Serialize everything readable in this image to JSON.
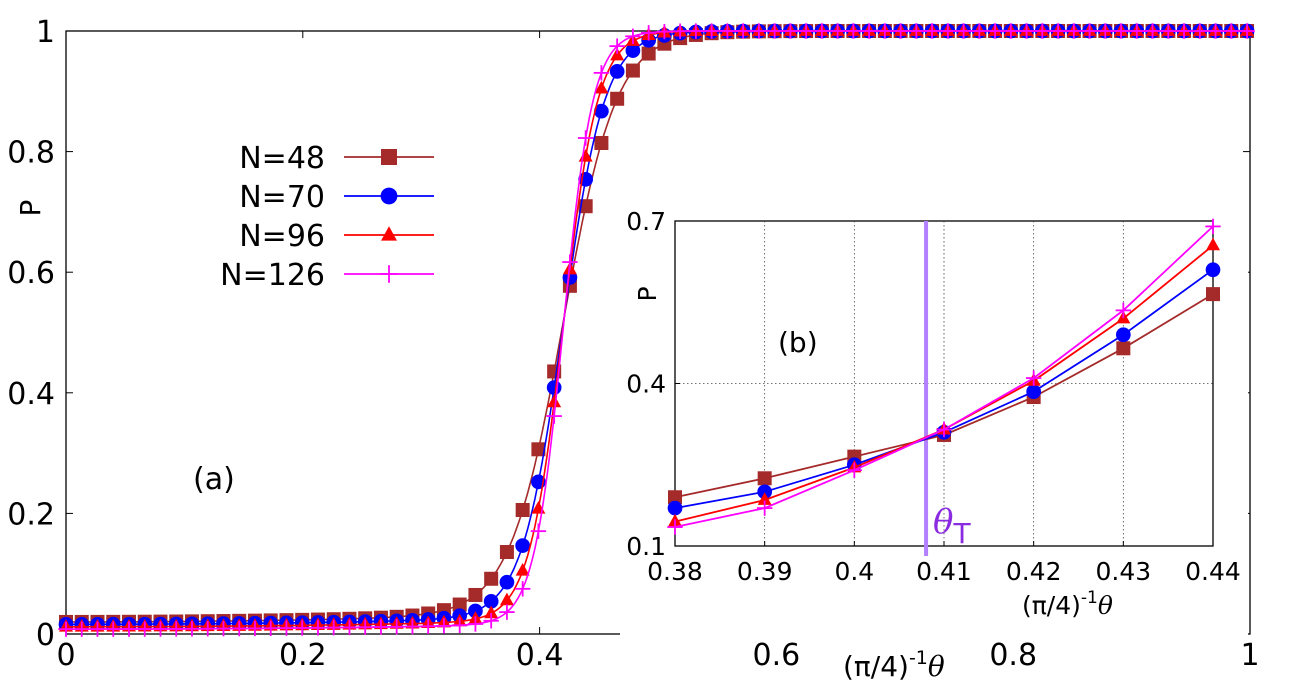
{
  "chart_data": [
    {
      "id": "main",
      "type": "line",
      "panel_label": "(a)",
      "xlabel_prefix": "(π/4)",
      "xlabel_exp": "-1",
      "xlabel_var": "θ",
      "ylabel": "P",
      "xlim": [
        0,
        1
      ],
      "ylim": [
        0,
        1
      ],
      "xticks": [
        0,
        0.2,
        0.4,
        0.6,
        0.8,
        1
      ],
      "xtick_labels": [
        "0",
        "0.2",
        "0.4",
        "0.6",
        "0.8",
        "1"
      ],
      "yticks": [
        0,
        0.2,
        0.4,
        0.6,
        0.8,
        1
      ],
      "ytick_labels": [
        "0",
        "0.2",
        "0.4",
        "0.6",
        "0.8",
        "1"
      ],
      "legend": [
        "N=48",
        "N=70",
        "N=96",
        "N=126"
      ],
      "legend_position": "upper-left",
      "series": [
        {
          "name": "N=48",
          "color": "#a52a2a",
          "marker": "square",
          "x0": 0.42,
          "width": 0.0225,
          "lo": 0.02,
          "lo_slope": 0.17,
          "step": 0.0133
        },
        {
          "name": "N=70",
          "color": "#0000ff",
          "marker": "circle",
          "x0": 0.42,
          "width": 0.0175,
          "lo": 0.016,
          "lo_slope": 0.14,
          "step": 0.0133
        },
        {
          "name": "N=96",
          "color": "#ff0000",
          "marker": "triangle",
          "x0": 0.42,
          "width": 0.0145,
          "lo": 0.012,
          "lo_slope": 0.12,
          "step": 0.0133
        },
        {
          "name": "N=126",
          "color": "#ff00ff",
          "marker": "plus",
          "x0": 0.42,
          "width": 0.0125,
          "lo": 0.008,
          "lo_slope": 0.1,
          "step": 0.0133
        }
      ]
    },
    {
      "id": "inset",
      "type": "line",
      "panel_label": "(b)",
      "xlabel_prefix": "(π/4)",
      "xlabel_exp": "-1",
      "xlabel_var": "θ",
      "ylabel": "P",
      "xlim": [
        0.38,
        0.44
      ],
      "ylim": [
        0.1,
        0.7
      ],
      "xticks": [
        0.38,
        0.39,
        0.4,
        0.41,
        0.42,
        0.43,
        0.44
      ],
      "xtick_labels": [
        "0.38",
        "0.39",
        "0.4",
        "0.41",
        "0.42",
        "0.43",
        "0.44"
      ],
      "yticks": [
        0.1,
        0.4,
        0.7
      ],
      "ytick_labels": [
        "0.1",
        "0.4",
        "0.7"
      ],
      "grid": true,
      "x": [
        0.38,
        0.39,
        0.4,
        0.41,
        0.42,
        0.43,
        0.44
      ],
      "series": [
        {
          "name": "N=48",
          "color": "#a52a2a",
          "marker": "square",
          "values": [
            0.19,
            0.225,
            0.265,
            0.305,
            0.375,
            0.465,
            0.565
          ]
        },
        {
          "name": "N=70",
          "color": "#0000ff",
          "marker": "circle",
          "values": [
            0.17,
            0.2,
            0.25,
            0.31,
            0.385,
            0.49,
            0.61
          ]
        },
        {
          "name": "N=96",
          "color": "#ff0000",
          "marker": "triangle",
          "values": [
            0.145,
            0.185,
            0.245,
            0.315,
            0.405,
            0.52,
            0.655
          ]
        },
        {
          "name": "N=126",
          "color": "#ff00ff",
          "marker": "plus",
          "values": [
            0.135,
            0.17,
            0.24,
            0.315,
            0.41,
            0.535,
            0.69
          ]
        }
      ],
      "vline": {
        "x": 0.408,
        "label": "θ",
        "label_sub": "T",
        "color": "#b380ff",
        "label_color": "#8a2be2"
      }
    }
  ]
}
